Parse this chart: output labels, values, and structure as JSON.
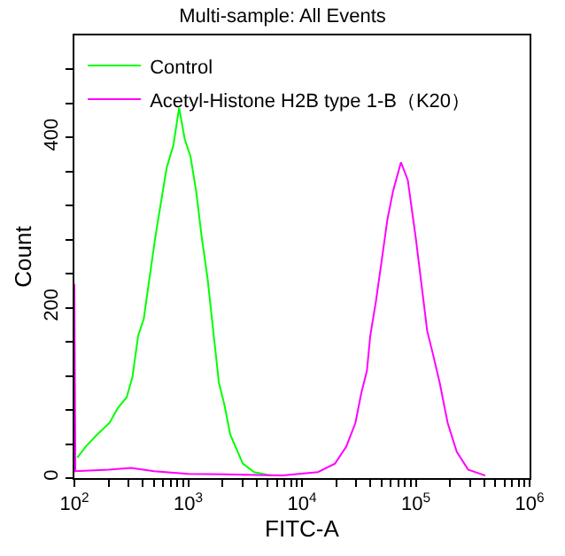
{
  "chart_data": {
    "type": "line",
    "title": "Multi-sample: All Events",
    "xlabel": "FITC-A",
    "ylabel": "Count",
    "log": "x",
    "xlim": [
      100,
      1000000
    ],
    "xticks": [
      {
        "value": 100,
        "label": "10$^{2}$"
      },
      {
        "value": 200,
        "label": null
      },
      {
        "value": 300,
        "label": null
      },
      {
        "value": 400,
        "label": null
      },
      {
        "value": 500,
        "label": null
      },
      {
        "value": 600,
        "label": null
      },
      {
        "value": 700,
        "label": null
      },
      {
        "value": 800,
        "label": null
      },
      {
        "value": 900,
        "label": null
      },
      {
        "value": 1000,
        "label": "10$^{3}$"
      },
      {
        "value": 2000,
        "label": null
      },
      {
        "value": 3000,
        "label": null
      },
      {
        "value": 4000,
        "label": null
      },
      {
        "value": 5000,
        "label": null
      },
      {
        "value": 6000,
        "label": null
      },
      {
        "value": 7000,
        "label": null
      },
      {
        "value": 8000,
        "label": null
      },
      {
        "value": 9000,
        "label": null
      },
      {
        "value": 10000,
        "label": "10$^{4}$"
      },
      {
        "value": 20000,
        "label": null
      },
      {
        "value": 30000,
        "label": null
      },
      {
        "value": 40000,
        "label": null
      },
      {
        "value": 50000,
        "label": null
      },
      {
        "value": 60000,
        "label": null
      },
      {
        "value": 70000,
        "label": null
      },
      {
        "value": 80000,
        "label": null
      },
      {
        "value": 90000,
        "label": null
      },
      {
        "value": 100000,
        "label": "10$^{5}$"
      },
      {
        "value": 200000,
        "label": null
      },
      {
        "value": 300000,
        "label": null
      },
      {
        "value": 400000,
        "label": null
      },
      {
        "value": 500000,
        "label": null
      },
      {
        "value": 600000,
        "label": null
      },
      {
        "value": 700000,
        "label": null
      },
      {
        "value": 800000,
        "label": null
      },
      {
        "value": 900000,
        "label": null
      },
      {
        "value": 1000000,
        "label": "10$^{6}$"
      }
    ],
    "ylim": [
      0,
      520
    ],
    "yticks": [
      0,
      {
        "value": 40,
        "label": null
      },
      {
        "value": 80,
        "label": null
      },
      {
        "value": 120,
        "label": null
      },
      {
        "value": 160,
        "label": null
      },
      200,
      {
        "value": 240,
        "label": null
      },
      {
        "value": 280,
        "label": null
      },
      {
        "value": 320,
        "label": null
      },
      {
        "value": 360,
        "label": null
      },
      400,
      {
        "value": 440,
        "label": null
      },
      {
        "value": 480,
        "label": null
      }
    ],
    "legend": "top left",
    "series": [
      {
        "name": "Control",
        "color": "#00ff00",
        "x": [
          106,
          126,
          158,
          204,
          240,
          288,
          324,
          363,
          407,
          457,
          513,
          575,
          646,
          741,
          832,
          933,
          1047,
          1175,
          1318,
          1479,
          1660,
          1862,
          2089,
          2344,
          3020,
          3802,
          5370
        ],
        "values": [
          24,
          37,
          51,
          65,
          82,
          95,
          119,
          167,
          187,
          235,
          282,
          323,
          364,
          391,
          435,
          398,
          378,
          337,
          282,
          235,
          173,
          112,
          85,
          51,
          17,
          7,
          3
        ]
      },
      {
        "name": "Acetyl-Histone H2B type 1-B（K20）",
        "color": "#ff00ff",
        "x": [
          100,
          102,
          200,
          316,
          501,
          1000,
          3162,
          6761,
          13800,
          19500,
          24500,
          29500,
          33100,
          37200,
          39800,
          44700,
          50100,
          56200,
          63100,
          74100,
          85100,
          100000,
          112200,
          125900,
          141300,
          162200,
          190500,
          229100,
          288400,
          407400
        ],
        "values": [
          228,
          8,
          10,
          12,
          8,
          5,
          4,
          3,
          7,
          17,
          37,
          65,
          99,
          126,
          167,
          208,
          255,
          303,
          337,
          371,
          350,
          282,
          228,
          173,
          146,
          112,
          65,
          31,
          10,
          3
        ]
      }
    ]
  }
}
